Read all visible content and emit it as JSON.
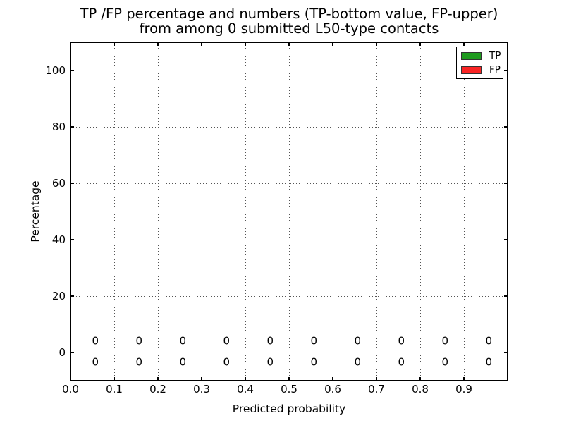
{
  "figure": {
    "title_line1": "TP /FP percentage and numbers (TP-bottom value, FP-upper)",
    "title_line2": "from among 0 submitted L50-type contacts"
  },
  "chart_data": {
    "type": "bar",
    "title": "TP /FP percentage and numbers (TP-bottom value, FP-upper) from among 0 submitted L50-type contacts",
    "xlabel": "Predicted probability",
    "ylabel": "Percentage",
    "xlim": [
      0.0,
      1.0
    ],
    "ylim": [
      -10,
      110
    ],
    "xtick_values": [
      0.0,
      0.1,
      0.2,
      0.3,
      0.4,
      0.5,
      0.6,
      0.7,
      0.8,
      0.9
    ],
    "xtick_labels": [
      "0.0",
      "0.1",
      "0.2",
      "0.3",
      "0.4",
      "0.5",
      "0.6",
      "0.7",
      "0.8",
      "0.9"
    ],
    "ytick_values": [
      0,
      20,
      40,
      60,
      80,
      100
    ],
    "ytick_labels": [
      "0",
      "20",
      "40",
      "60",
      "80",
      "100"
    ],
    "grid": true,
    "grid_linestyle": "dotted",
    "bin_centers": [
      0.057,
      0.157,
      0.257,
      0.357,
      0.457,
      0.557,
      0.657,
      0.757,
      0.857,
      0.957
    ],
    "series": [
      {
        "name": "TP",
        "color": "#1f9b1f",
        "values": [
          0,
          0,
          0,
          0,
          0,
          0,
          0,
          0,
          0,
          0
        ]
      },
      {
        "name": "FP",
        "color": "#fa2424",
        "values": [
          0,
          0,
          0,
          0,
          0,
          0,
          0,
          0,
          0,
          0
        ]
      }
    ],
    "value_label_y": {
      "fp_upper": 4,
      "tp_bottom": -3.5
    },
    "legend": {
      "position": "upper right",
      "entries": [
        {
          "label": "TP",
          "color": "#1f9b1f"
        },
        {
          "label": "FP",
          "color": "#fa2424"
        }
      ]
    }
  }
}
